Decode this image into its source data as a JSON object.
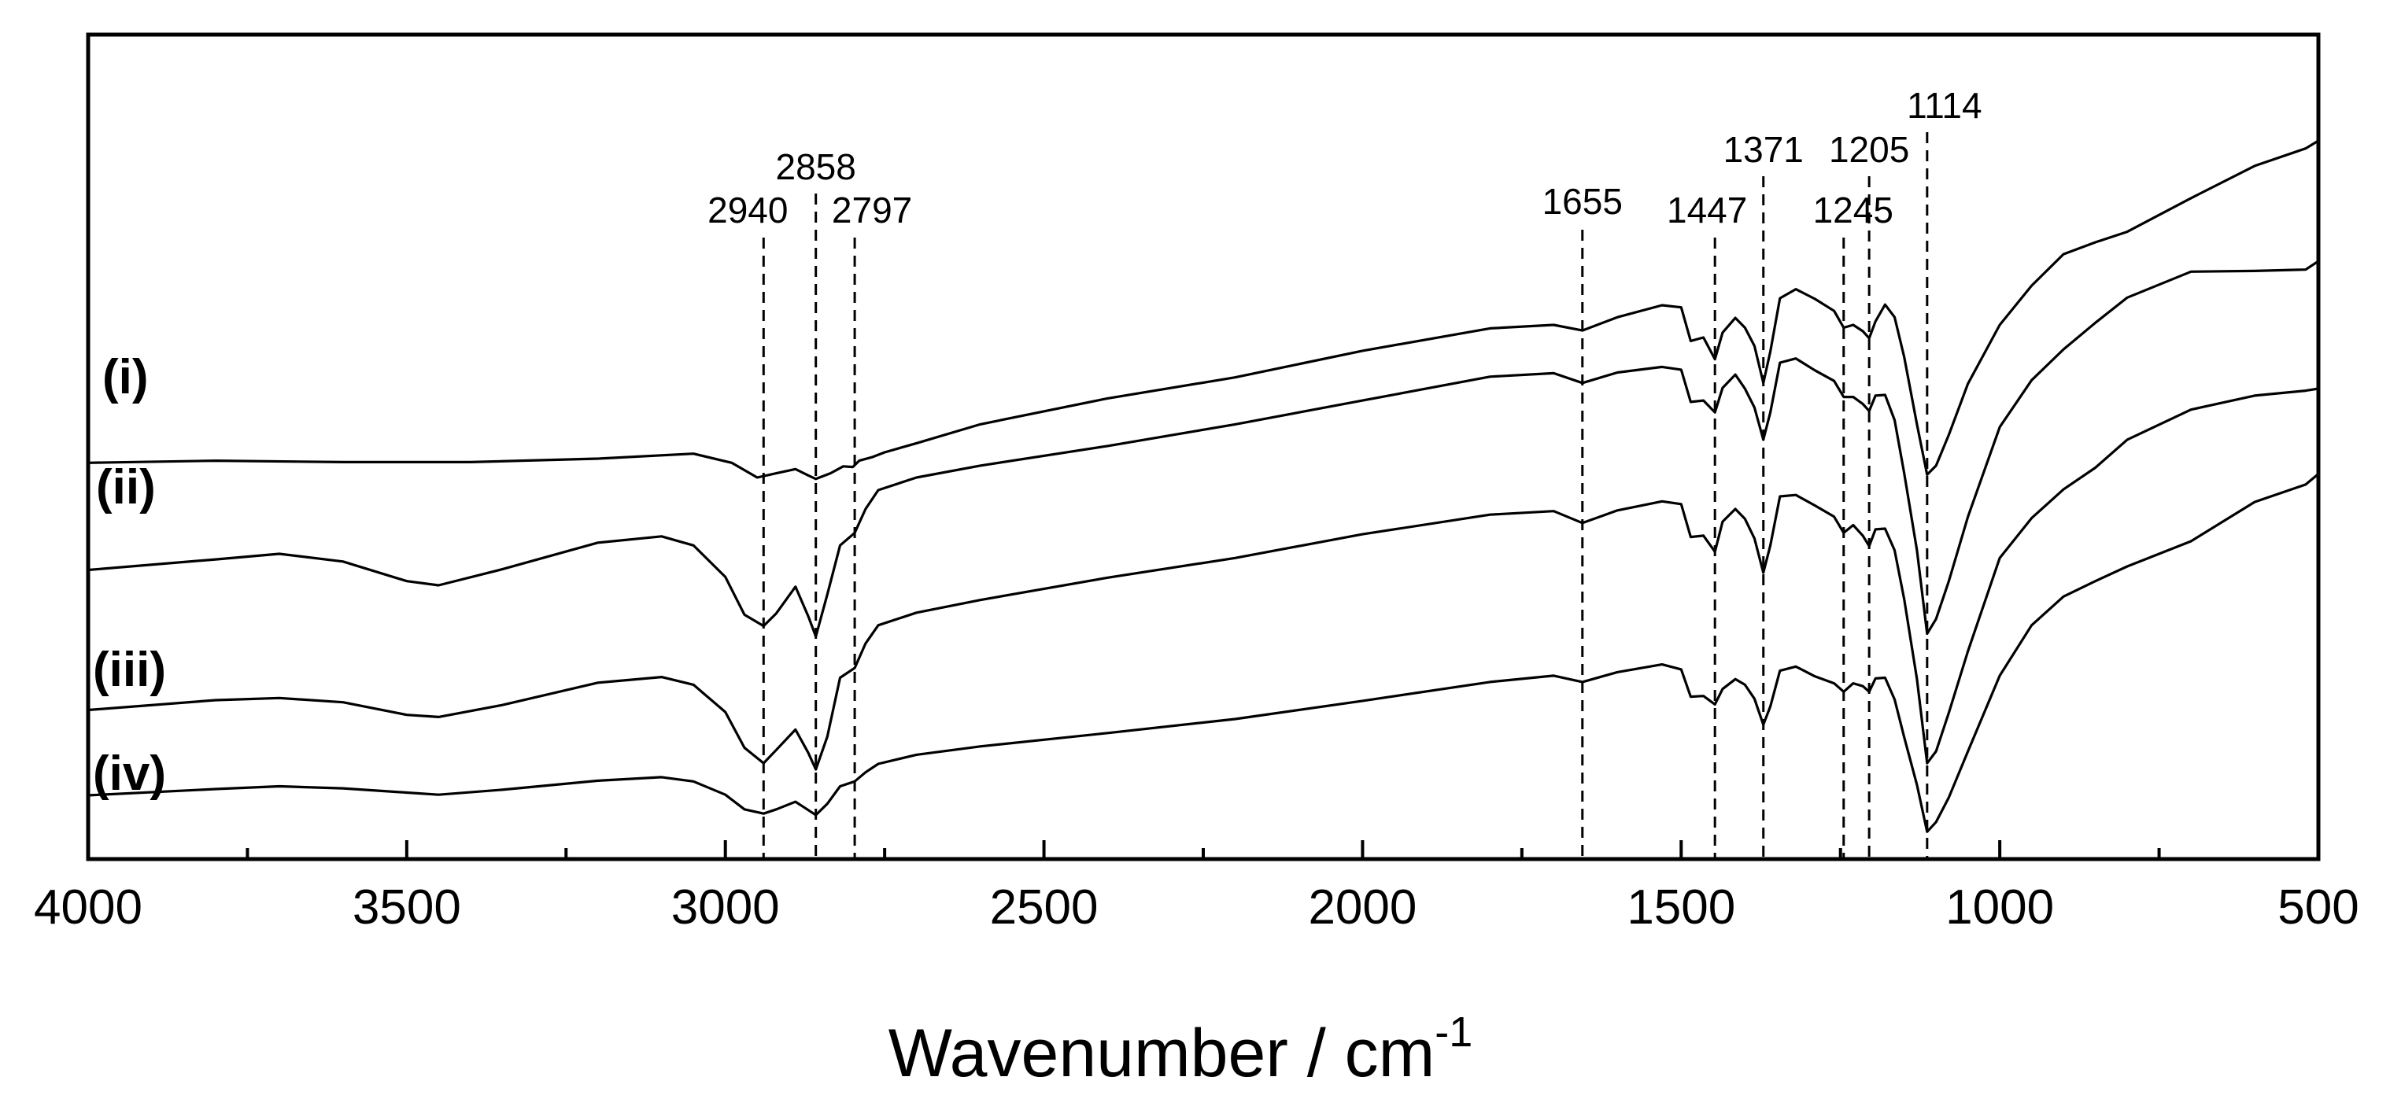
{
  "chart_data": {
    "type": "line",
    "title": "",
    "xlabel": "Wavenumber / cm",
    "xlabel_superscript": "-1",
    "ylabel": "",
    "xlim": [
      4000,
      500
    ],
    "x_ticks": [
      4000,
      3500,
      3000,
      2500,
      2000,
      1500,
      1000,
      500
    ],
    "x_tick_labels": [
      "4000",
      "3500",
      "3000",
      "2500",
      "2000",
      "1500",
      "1000",
      "500"
    ],
    "x_minor_step": 250,
    "y_ticks_shown": false,
    "ylim": [
      0,
      100
    ],
    "grid": false,
    "peak_markers": [
      {
        "label": "2940",
        "x": 2940
      },
      {
        "label": "2858",
        "x": 2858
      },
      {
        "label": "2797",
        "x": 2797
      },
      {
        "label": "1655",
        "x": 1655
      },
      {
        "label": "1447",
        "x": 1447
      },
      {
        "label": "1371",
        "x": 1371
      },
      {
        "label": "1245",
        "x": 1245
      },
      {
        "label": "1205",
        "x": 1205
      },
      {
        "label": "1114",
        "x": 1114
      }
    ],
    "series": [
      {
        "name": "(i)",
        "points": [
          [
            4000,
            53
          ],
          [
            3800,
            53.3
          ],
          [
            3600,
            53.1
          ],
          [
            3400,
            53.1
          ],
          [
            3200,
            53.6
          ],
          [
            3050,
            54.3
          ],
          [
            2990,
            53
          ],
          [
            2950,
            50.9
          ],
          [
            2920,
            51.5
          ],
          [
            2890,
            52.1
          ],
          [
            2870,
            51.2
          ],
          [
            2858,
            50.7
          ],
          [
            2835,
            51.5
          ],
          [
            2815,
            52.5
          ],
          [
            2800,
            52.4
          ],
          [
            2790,
            53.3
          ],
          [
            2770,
            53.8
          ],
          [
            2750,
            54.5
          ],
          [
            2700,
            55.8
          ],
          [
            2600,
            58.5
          ],
          [
            2400,
            62.2
          ],
          [
            2200,
            65.2
          ],
          [
            2000,
            69
          ],
          [
            1800,
            72.2
          ],
          [
            1700,
            72.7
          ],
          [
            1655,
            71.9
          ],
          [
            1600,
            73.8
          ],
          [
            1530,
            75.5
          ],
          [
            1500,
            75.2
          ],
          [
            1485,
            70.4
          ],
          [
            1465,
            70.9
          ],
          [
            1447,
            67.8
          ],
          [
            1435,
            71.6
          ],
          [
            1415,
            73.7
          ],
          [
            1400,
            72.3
          ],
          [
            1385,
            69.7
          ],
          [
            1371,
            64.4
          ],
          [
            1360,
            68.9
          ],
          [
            1345,
            76.5
          ],
          [
            1320,
            77.8
          ],
          [
            1290,
            76.4
          ],
          [
            1260,
            74.7
          ],
          [
            1245,
            72.3
          ],
          [
            1230,
            72.7
          ],
          [
            1215,
            71.8
          ],
          [
            1205,
            70.8
          ],
          [
            1195,
            73.2
          ],
          [
            1180,
            75.6
          ],
          [
            1165,
            73.8
          ],
          [
            1150,
            68.1
          ],
          [
            1130,
            58.5
          ],
          [
            1114,
            51.3
          ],
          [
            1100,
            52.6
          ],
          [
            1080,
            57
          ],
          [
            1050,
            64.3
          ],
          [
            1000,
            72.7
          ],
          [
            950,
            78.3
          ],
          [
            900,
            82.8
          ],
          [
            850,
            84.5
          ],
          [
            800,
            86
          ],
          [
            700,
            90.8
          ],
          [
            600,
            95.4
          ],
          [
            520,
            97.9
          ],
          [
            500,
            99
          ]
        ]
      },
      {
        "name": "(ii)",
        "points": [
          [
            4000,
            37.7
          ],
          [
            3800,
            39.2
          ],
          [
            3700,
            40
          ],
          [
            3600,
            38.9
          ],
          [
            3500,
            36.1
          ],
          [
            3450,
            35.5
          ],
          [
            3350,
            37.8
          ],
          [
            3200,
            41.6
          ],
          [
            3100,
            42.5
          ],
          [
            3050,
            41.2
          ],
          [
            3000,
            36.7
          ],
          [
            2970,
            31.3
          ],
          [
            2940,
            29.7
          ],
          [
            2920,
            31.5
          ],
          [
            2890,
            35.3
          ],
          [
            2870,
            31.1
          ],
          [
            2858,
            28.2
          ],
          [
            2840,
            34.2
          ],
          [
            2820,
            41.2
          ],
          [
            2797,
            43
          ],
          [
            2780,
            46.4
          ],
          [
            2760,
            49.1
          ],
          [
            2700,
            50.9
          ],
          [
            2600,
            52.6
          ],
          [
            2400,
            55.4
          ],
          [
            2200,
            58.5
          ],
          [
            2000,
            61.9
          ],
          [
            1800,
            65.3
          ],
          [
            1700,
            65.8
          ],
          [
            1655,
            64.4
          ],
          [
            1600,
            65.9
          ],
          [
            1530,
            66.7
          ],
          [
            1500,
            66.3
          ],
          [
            1485,
            61.7
          ],
          [
            1465,
            61.9
          ],
          [
            1447,
            60.2
          ],
          [
            1435,
            63.7
          ],
          [
            1415,
            65.6
          ],
          [
            1400,
            63.6
          ],
          [
            1385,
            60.9
          ],
          [
            1371,
            56.3
          ],
          [
            1360,
            60.2
          ],
          [
            1345,
            67.3
          ],
          [
            1320,
            67.9
          ],
          [
            1290,
            66.2
          ],
          [
            1260,
            64.7
          ],
          [
            1245,
            62.4
          ],
          [
            1230,
            62.4
          ],
          [
            1215,
            61.4
          ],
          [
            1205,
            60.4
          ],
          [
            1195,
            62.6
          ],
          [
            1180,
            62.7
          ],
          [
            1165,
            59.1
          ],
          [
            1150,
            51.5
          ],
          [
            1130,
            40.5
          ],
          [
            1114,
            28.6
          ],
          [
            1100,
            30.7
          ],
          [
            1080,
            36.1
          ],
          [
            1050,
            45.3
          ],
          [
            1000,
            58.1
          ],
          [
            950,
            64.8
          ],
          [
            900,
            69.2
          ],
          [
            850,
            73
          ],
          [
            800,
            76.6
          ],
          [
            700,
            80.3
          ],
          [
            600,
            80.4
          ],
          [
            520,
            80.6
          ],
          [
            500,
            81.8
          ]
        ]
      },
      {
        "name": "(iii)",
        "points": [
          [
            4000,
            17.7
          ],
          [
            3800,
            19.1
          ],
          [
            3700,
            19.4
          ],
          [
            3600,
            18.8
          ],
          [
            3500,
            17
          ],
          [
            3450,
            16.7
          ],
          [
            3350,
            18.4
          ],
          [
            3200,
            21.6
          ],
          [
            3100,
            22.4
          ],
          [
            3050,
            21.3
          ],
          [
            3000,
            17.4
          ],
          [
            2970,
            12.3
          ],
          [
            2940,
            10.1
          ],
          [
            2920,
            12
          ],
          [
            2890,
            14.9
          ],
          [
            2870,
            11.6
          ],
          [
            2858,
            9.2
          ],
          [
            2840,
            13.9
          ],
          [
            2820,
            22.3
          ],
          [
            2797,
            23.7
          ],
          [
            2780,
            27.2
          ],
          [
            2760,
            29.8
          ],
          [
            2700,
            31.6
          ],
          [
            2600,
            33.4
          ],
          [
            2400,
            36.6
          ],
          [
            2200,
            39.4
          ],
          [
            2000,
            42.8
          ],
          [
            1800,
            45.6
          ],
          [
            1700,
            46.1
          ],
          [
            1655,
            44.4
          ],
          [
            1600,
            46.2
          ],
          [
            1530,
            47.5
          ],
          [
            1500,
            47.1
          ],
          [
            1485,
            42.4
          ],
          [
            1465,
            42.6
          ],
          [
            1447,
            40.3
          ],
          [
            1435,
            44.6
          ],
          [
            1415,
            46.4
          ],
          [
            1400,
            45
          ],
          [
            1385,
            42.2
          ],
          [
            1371,
            37.3
          ],
          [
            1360,
            41.2
          ],
          [
            1345,
            48.2
          ],
          [
            1320,
            48.4
          ],
          [
            1290,
            46.9
          ],
          [
            1260,
            45.3
          ],
          [
            1245,
            43
          ],
          [
            1230,
            44.1
          ],
          [
            1215,
            42.6
          ],
          [
            1205,
            41.1
          ],
          [
            1195,
            43.5
          ],
          [
            1180,
            43.6
          ],
          [
            1165,
            40.5
          ],
          [
            1150,
            33.5
          ],
          [
            1130,
            22.1
          ],
          [
            1114,
            10.1
          ],
          [
            1100,
            11.8
          ],
          [
            1080,
            17.3
          ],
          [
            1050,
            26.1
          ],
          [
            1000,
            39.4
          ],
          [
            950,
            45.1
          ],
          [
            900,
            49.2
          ],
          [
            850,
            52.3
          ],
          [
            800,
            56.3
          ],
          [
            700,
            60.6
          ],
          [
            600,
            62.6
          ],
          [
            520,
            63.3
          ],
          [
            500,
            63.6
          ]
        ]
      },
      {
        "name": "(iv)",
        "points": [
          [
            4000,
            5.5
          ],
          [
            3800,
            6.4
          ],
          [
            3700,
            6.8
          ],
          [
            3600,
            6.5
          ],
          [
            3500,
            5.9
          ],
          [
            3450,
            5.6
          ],
          [
            3350,
            6.3
          ],
          [
            3200,
            7.6
          ],
          [
            3100,
            8.1
          ],
          [
            3050,
            7.5
          ],
          [
            3000,
            5.6
          ],
          [
            2970,
            3.5
          ],
          [
            2940,
            2.9
          ],
          [
            2920,
            3.5
          ],
          [
            2890,
            4.6
          ],
          [
            2870,
            3.4
          ],
          [
            2858,
            2.7
          ],
          [
            2840,
            4.3
          ],
          [
            2820,
            6.8
          ],
          [
            2797,
            7.5
          ],
          [
            2780,
            8.8
          ],
          [
            2760,
            10
          ],
          [
            2700,
            11.3
          ],
          [
            2600,
            12.5
          ],
          [
            2400,
            14.4
          ],
          [
            2200,
            16.4
          ],
          [
            2000,
            19
          ],
          [
            1800,
            21.7
          ],
          [
            1700,
            22.6
          ],
          [
            1655,
            21.7
          ],
          [
            1600,
            23.1
          ],
          [
            1530,
            24.2
          ],
          [
            1500,
            23.5
          ],
          [
            1485,
            19.6
          ],
          [
            1465,
            19.7
          ],
          [
            1447,
            18.5
          ],
          [
            1435,
            20.7
          ],
          [
            1415,
            22.1
          ],
          [
            1400,
            21.3
          ],
          [
            1385,
            19.3
          ],
          [
            1371,
            15.6
          ],
          [
            1360,
            18.2
          ],
          [
            1345,
            23.3
          ],
          [
            1320,
            23.9
          ],
          [
            1290,
            22.5
          ],
          [
            1260,
            21.5
          ],
          [
            1245,
            20.3
          ],
          [
            1230,
            21.5
          ],
          [
            1215,
            21.1
          ],
          [
            1205,
            20.3
          ],
          [
            1195,
            22.2
          ],
          [
            1180,
            22.3
          ],
          [
            1165,
            19.2
          ],
          [
            1150,
            13.8
          ],
          [
            1130,
            7
          ],
          [
            1114,
            0.3
          ],
          [
            1100,
            1.7
          ],
          [
            1080,
            5.2
          ],
          [
            1050,
            11.8
          ],
          [
            1000,
            22.6
          ],
          [
            950,
            29.8
          ],
          [
            900,
            33.9
          ],
          [
            850,
            36.1
          ],
          [
            800,
            38.2
          ],
          [
            700,
            41.8
          ],
          [
            600,
            47.4
          ],
          [
            520,
            49.9
          ],
          [
            500,
            51.4
          ]
        ]
      }
    ]
  }
}
